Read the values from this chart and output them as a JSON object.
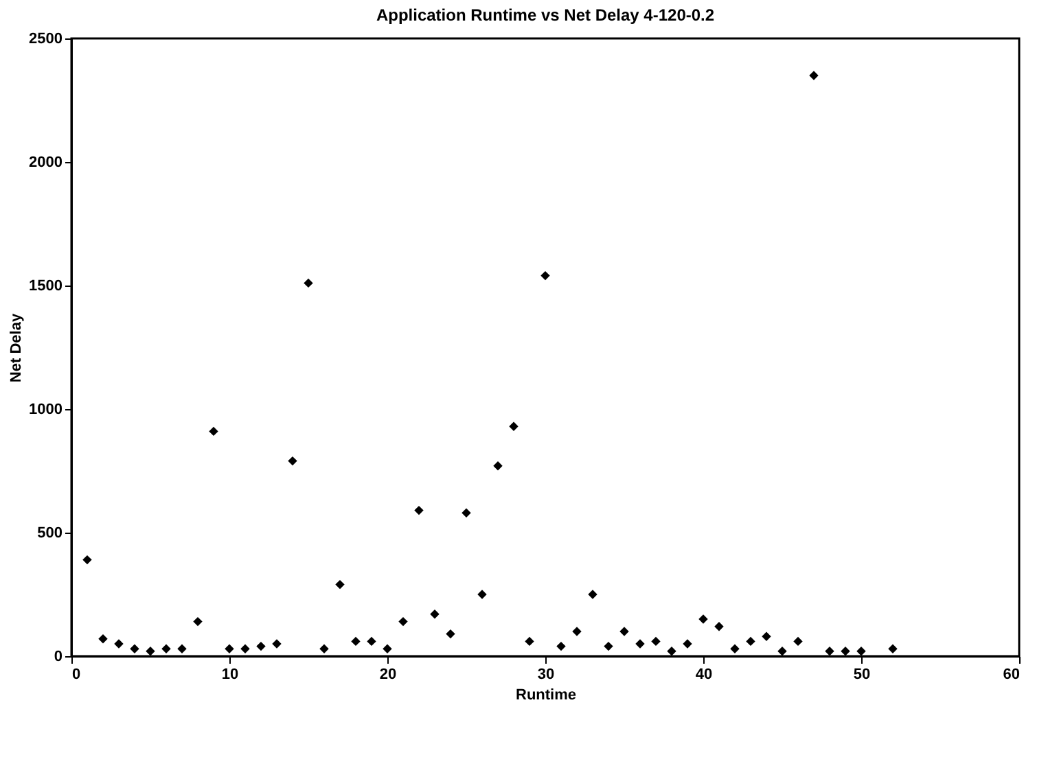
{
  "chart_data": {
    "type": "scatter",
    "title": "Application Runtime vs Net Delay 4-120-0.2",
    "xlabel": "Runtime",
    "ylabel": "Net Delay",
    "x": [
      1,
      2,
      3,
      4,
      5,
      6,
      7,
      8,
      9,
      10,
      11,
      12,
      13,
      14,
      15,
      16,
      17,
      18,
      19,
      20,
      21,
      22,
      23,
      24,
      25,
      26,
      27,
      28,
      29,
      30,
      31,
      32,
      33,
      34,
      35,
      36,
      37,
      38,
      39,
      40,
      41,
      42,
      43,
      44,
      45,
      46,
      47,
      48,
      49,
      50,
      52
    ],
    "series": [
      {
        "color": "#000000",
        "values": [
          390,
          70,
          50,
          30,
          20,
          30,
          30,
          140,
          910,
          30,
          30,
          40,
          50,
          790,
          1510,
          30,
          290,
          60,
          60,
          30,
          140,
          590,
          170,
          90,
          580,
          250,
          770,
          930,
          60,
          1540,
          40,
          100,
          250,
          40,
          100,
          50,
          60,
          20,
          50,
          150,
          120,
          30,
          60,
          80,
          20,
          60,
          2350,
          20,
          20,
          20,
          30
        ]
      }
    ],
    "xlim": [
      0,
      60
    ],
    "xticks": [
      0,
      10,
      20,
      30,
      40,
      50,
      60
    ],
    "ylim": [
      0,
      2500
    ],
    "yticks": [
      0,
      500,
      1000,
      1500,
      2000,
      2500
    ],
    "grid": false,
    "marker": "diamond"
  }
}
